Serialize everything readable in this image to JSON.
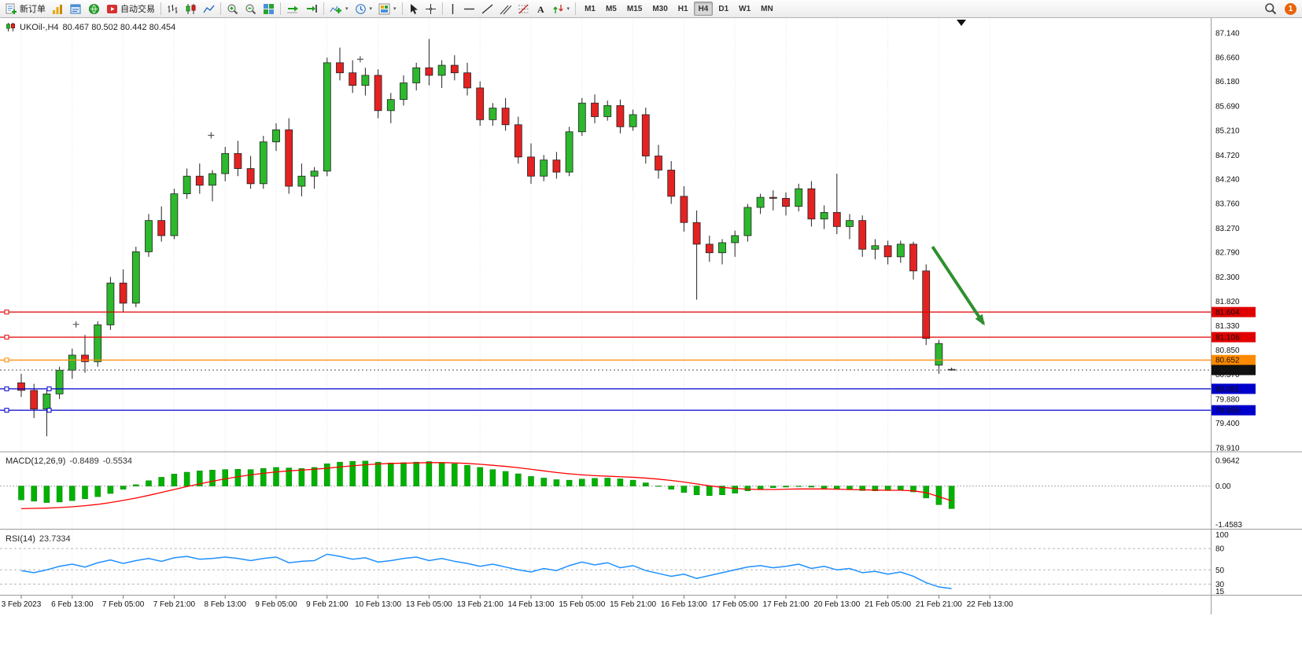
{
  "toolbar": {
    "new_order_label": "新订单",
    "auto_trading_label": "自动交易",
    "timeframes": [
      "M1",
      "M5",
      "M15",
      "M30",
      "H1",
      "H4",
      "D1",
      "W1",
      "MN"
    ],
    "active_timeframe": "H4",
    "notification_count": "1"
  },
  "chart": {
    "title": "UKOil-,H4",
    "ohlc": "80.467 80.502 80.442 80.454"
  },
  "chart_data": {
    "type": "candlestick",
    "symbol": "UKOil-",
    "timeframe": "H4",
    "current_bar": {
      "open": 80.467,
      "high": 80.502,
      "low": 80.442,
      "close": 80.454
    },
    "current_price": 80.454,
    "current_price_label": "80.454",
    "colors": {
      "bull": "#2db82d",
      "bear": "#e32222",
      "macd_hist": "#00b200",
      "macd_signal": "#ff0000",
      "rsi_line": "#1e90ff",
      "arrow": "#2f8f2f",
      "level_red": "#e00000",
      "level_blue": "#0000cc",
      "level_orange": "#ff8a00",
      "current_tag_bg": "#111111"
    },
    "price_axis": [
      "87.140",
      "86.660",
      "86.180",
      "85.690",
      "85.210",
      "84.720",
      "84.240",
      "83.760",
      "83.270",
      "82.790",
      "82.300",
      "81.820",
      "81.330",
      "80.850",
      "80.370",
      "79.880",
      "79.400",
      "78.910"
    ],
    "time_axis": [
      "3 Feb 2023",
      "6 Feb 13:00",
      "7 Feb 05:00",
      "7 Feb 21:00",
      "8 Feb 13:00",
      "9 Feb 05:00",
      "9 Feb 21:00",
      "10 Feb 13:00",
      "13 Feb 05:00",
      "13 Feb 21:00",
      "14 Feb 13:00",
      "15 Feb 05:00",
      "15 Feb 21:00",
      "16 Feb 13:00",
      "17 Feb 05:00",
      "17 Feb 21:00",
      "20 Feb 13:00",
      "21 Feb 05:00",
      "21 Feb 21:00",
      "22 Feb 13:00"
    ],
    "levels": [
      {
        "price": 81.604,
        "tag": "81.604",
        "color": "#e00000"
      },
      {
        "price": 81.106,
        "tag": "81.106",
        "color": "#e00000"
      },
      {
        "price": 80.652,
        "tag": "80.652",
        "color": "#ff8a00"
      },
      {
        "price": 80.081,
        "tag": "80.081",
        "color": "#0000cc"
      },
      {
        "price": 79.656,
        "tag": "79.656",
        "color": "#0000cc"
      }
    ],
    "candles": [
      [
        80.2,
        80.38,
        79.92,
        80.05
      ],
      [
        80.05,
        80.18,
        79.5,
        79.68
      ],
      [
        79.68,
        80.06,
        79.14,
        79.98
      ],
      [
        79.98,
        80.52,
        79.88,
        80.45
      ],
      [
        80.45,
        80.88,
        80.28,
        80.75
      ],
      [
        80.75,
        81.15,
        80.4,
        80.62
      ],
      [
        80.62,
        81.42,
        80.52,
        81.35
      ],
      [
        81.35,
        82.3,
        81.25,
        82.18
      ],
      [
        82.18,
        82.45,
        81.6,
        81.78
      ],
      [
        81.78,
        82.9,
        81.7,
        82.8
      ],
      [
        82.8,
        83.55,
        82.7,
        83.42
      ],
      [
        83.42,
        83.7,
        83.0,
        83.12
      ],
      [
        83.12,
        84.05,
        83.05,
        83.95
      ],
      [
        83.95,
        84.45,
        83.85,
        84.3
      ],
      [
        84.3,
        84.55,
        83.95,
        84.12
      ],
      [
        84.12,
        84.42,
        83.8,
        84.35
      ],
      [
        84.35,
        84.88,
        84.2,
        84.75
      ],
      [
        84.75,
        85.0,
        84.3,
        84.45
      ],
      [
        84.45,
        84.7,
        84.05,
        84.15
      ],
      [
        84.15,
        85.1,
        84.05,
        84.98
      ],
      [
        84.98,
        85.35,
        84.8,
        85.22
      ],
      [
        85.22,
        85.45,
        83.95,
        84.1
      ],
      [
        84.1,
        84.55,
        83.9,
        84.3
      ],
      [
        84.3,
        84.48,
        84.05,
        84.4
      ],
      [
        84.4,
        86.65,
        84.3,
        86.55
      ],
      [
        86.55,
        86.85,
        86.2,
        86.35
      ],
      [
        86.35,
        86.6,
        85.95,
        86.1
      ],
      [
        86.1,
        86.45,
        85.9,
        86.3
      ],
      [
        86.3,
        86.42,
        85.45,
        85.6
      ],
      [
        85.6,
        85.95,
        85.35,
        85.82
      ],
      [
        85.82,
        86.3,
        85.7,
        86.15
      ],
      [
        86.15,
        86.55,
        86.0,
        86.45
      ],
      [
        86.45,
        87.02,
        86.1,
        86.3
      ],
      [
        86.3,
        86.6,
        86.05,
        86.5
      ],
      [
        86.5,
        86.7,
        86.2,
        86.35
      ],
      [
        86.35,
        86.55,
        85.9,
        86.05
      ],
      [
        86.05,
        86.18,
        85.3,
        85.42
      ],
      [
        85.42,
        85.75,
        85.3,
        85.65
      ],
      [
        85.65,
        85.85,
        85.2,
        85.32
      ],
      [
        85.32,
        85.48,
        84.55,
        84.68
      ],
      [
        84.68,
        84.95,
        84.15,
        84.3
      ],
      [
        84.3,
        84.72,
        84.2,
        84.62
      ],
      [
        84.62,
        84.78,
        84.25,
        84.38
      ],
      [
        84.38,
        85.28,
        84.3,
        85.18
      ],
      [
        85.18,
        85.85,
        85.1,
        85.75
      ],
      [
        85.75,
        85.92,
        85.35,
        85.48
      ],
      [
        85.48,
        85.8,
        85.4,
        85.7
      ],
      [
        85.7,
        85.82,
        85.15,
        85.28
      ],
      [
        85.28,
        85.62,
        85.2,
        85.52
      ],
      [
        85.52,
        85.66,
        84.55,
        84.7
      ],
      [
        84.7,
        84.92,
        84.25,
        84.42
      ],
      [
        84.42,
        84.6,
        83.75,
        83.9
      ],
      [
        83.9,
        84.1,
        83.2,
        83.38
      ],
      [
        83.38,
        83.62,
        81.85,
        82.95
      ],
      [
        82.95,
        83.12,
        82.6,
        82.78
      ],
      [
        82.78,
        83.05,
        82.55,
        82.98
      ],
      [
        82.98,
        83.22,
        82.7,
        83.12
      ],
      [
        83.12,
        83.75,
        83.0,
        83.68
      ],
      [
        83.68,
        83.95,
        83.55,
        83.88
      ],
      [
        83.88,
        84.02,
        83.62,
        83.86
      ],
      [
        83.86,
        83.98,
        83.52,
        83.7
      ],
      [
        83.7,
        84.15,
        83.6,
        84.05
      ],
      [
        84.05,
        84.2,
        83.3,
        83.45
      ],
      [
        83.45,
        83.72,
        83.25,
        83.58
      ],
      [
        83.58,
        84.35,
        83.15,
        83.3
      ],
      [
        83.3,
        83.55,
        83.05,
        83.42
      ],
      [
        83.42,
        83.52,
        82.7,
        82.85
      ],
      [
        82.85,
        83.05,
        82.65,
        82.92
      ],
      [
        82.92,
        83.02,
        82.55,
        82.7
      ],
      [
        82.7,
        83.02,
        82.58,
        82.95
      ],
      [
        82.95,
        83.0,
        82.25,
        82.42
      ],
      [
        82.42,
        82.55,
        80.95,
        81.08
      ],
      [
        80.55,
        81.05,
        80.38,
        80.98
      ],
      [
        80.467,
        80.502,
        80.442,
        80.454
      ]
    ],
    "crosses": [
      {
        "i": 4.3,
        "price": 81.36
      },
      {
        "i": 14.9,
        "price": 85.11
      },
      {
        "i": 26.6,
        "price": 86.62
      }
    ],
    "arrow": {
      "from_bar": 71.5,
      "from_price": 82.9,
      "to_bar": 76.0,
      "to_price": 81.25
    },
    "macd": {
      "label": "MACD(12,26,9)",
      "value_text": "-0.8489",
      "signal_text": "-0.5534",
      "axis": [
        "0.9642",
        "0.00",
        "-1.4583"
      ],
      "values": [
        -0.52,
        -0.57,
        -0.62,
        -0.6,
        -0.55,
        -0.48,
        -0.4,
        -0.28,
        -0.12,
        0.05,
        0.2,
        0.33,
        0.45,
        0.52,
        0.57,
        0.6,
        0.62,
        0.63,
        0.62,
        0.66,
        0.7,
        0.68,
        0.66,
        0.7,
        0.84,
        0.9,
        0.93,
        0.94,
        0.9,
        0.87,
        0.88,
        0.9,
        0.92,
        0.89,
        0.84,
        0.78,
        0.7,
        0.62,
        0.55,
        0.46,
        0.36,
        0.3,
        0.24,
        0.22,
        0.26,
        0.29,
        0.3,
        0.27,
        0.22,
        0.12,
        0.0,
        -0.12,
        -0.24,
        -0.33,
        -0.36,
        -0.33,
        -0.27,
        -0.18,
        -0.11,
        -0.06,
        -0.04,
        -0.02,
        -0.04,
        -0.08,
        -0.12,
        -0.14,
        -0.17,
        -0.18,
        -0.17,
        -0.16,
        -0.22,
        -0.45,
        -0.7,
        -0.8489
      ],
      "signal": [
        -0.85,
        -0.84,
        -0.83,
        -0.81,
        -0.78,
        -0.74,
        -0.69,
        -0.62,
        -0.54,
        -0.45,
        -0.35,
        -0.24,
        -0.13,
        -0.02,
        0.08,
        0.18,
        0.27,
        0.35,
        0.42,
        0.48,
        0.53,
        0.57,
        0.6,
        0.63,
        0.67,
        0.72,
        0.76,
        0.8,
        0.83,
        0.85,
        0.86,
        0.87,
        0.88,
        0.88,
        0.87,
        0.85,
        0.82,
        0.78,
        0.74,
        0.69,
        0.63,
        0.57,
        0.51,
        0.46,
        0.42,
        0.39,
        0.37,
        0.35,
        0.33,
        0.3,
        0.26,
        0.21,
        0.15,
        0.08,
        0.01,
        -0.05,
        -0.09,
        -0.12,
        -0.13,
        -0.13,
        -0.12,
        -0.11,
        -0.11,
        -0.11,
        -0.12,
        -0.13,
        -0.14,
        -0.15,
        -0.16,
        -0.16,
        -0.18,
        -0.25,
        -0.4,
        -0.5534
      ]
    },
    "rsi": {
      "label": "RSI(14)",
      "value_text": "23.7334",
      "axis": [
        "100",
        "80",
        "50",
        "30",
        "15"
      ],
      "levels": [
        80,
        50,
        30
      ],
      "values": [
        49,
        46,
        50,
        55,
        58,
        54,
        60,
        64,
        59,
        63,
        66,
        62,
        67,
        69,
        65,
        66,
        68,
        66,
        63,
        66,
        68,
        60,
        62,
        63,
        72,
        69,
        65,
        67,
        61,
        63,
        66,
        68,
        63,
        66,
        62,
        59,
        55,
        58,
        54,
        50,
        47,
        52,
        49,
        56,
        61,
        57,
        60,
        53,
        56,
        49,
        45,
        41,
        44,
        38,
        42,
        46,
        50,
        54,
        56,
        53,
        55,
        58,
        52,
        55,
        50,
        52,
        46,
        48,
        44,
        47,
        41,
        32,
        26,
        23.73
      ]
    }
  }
}
